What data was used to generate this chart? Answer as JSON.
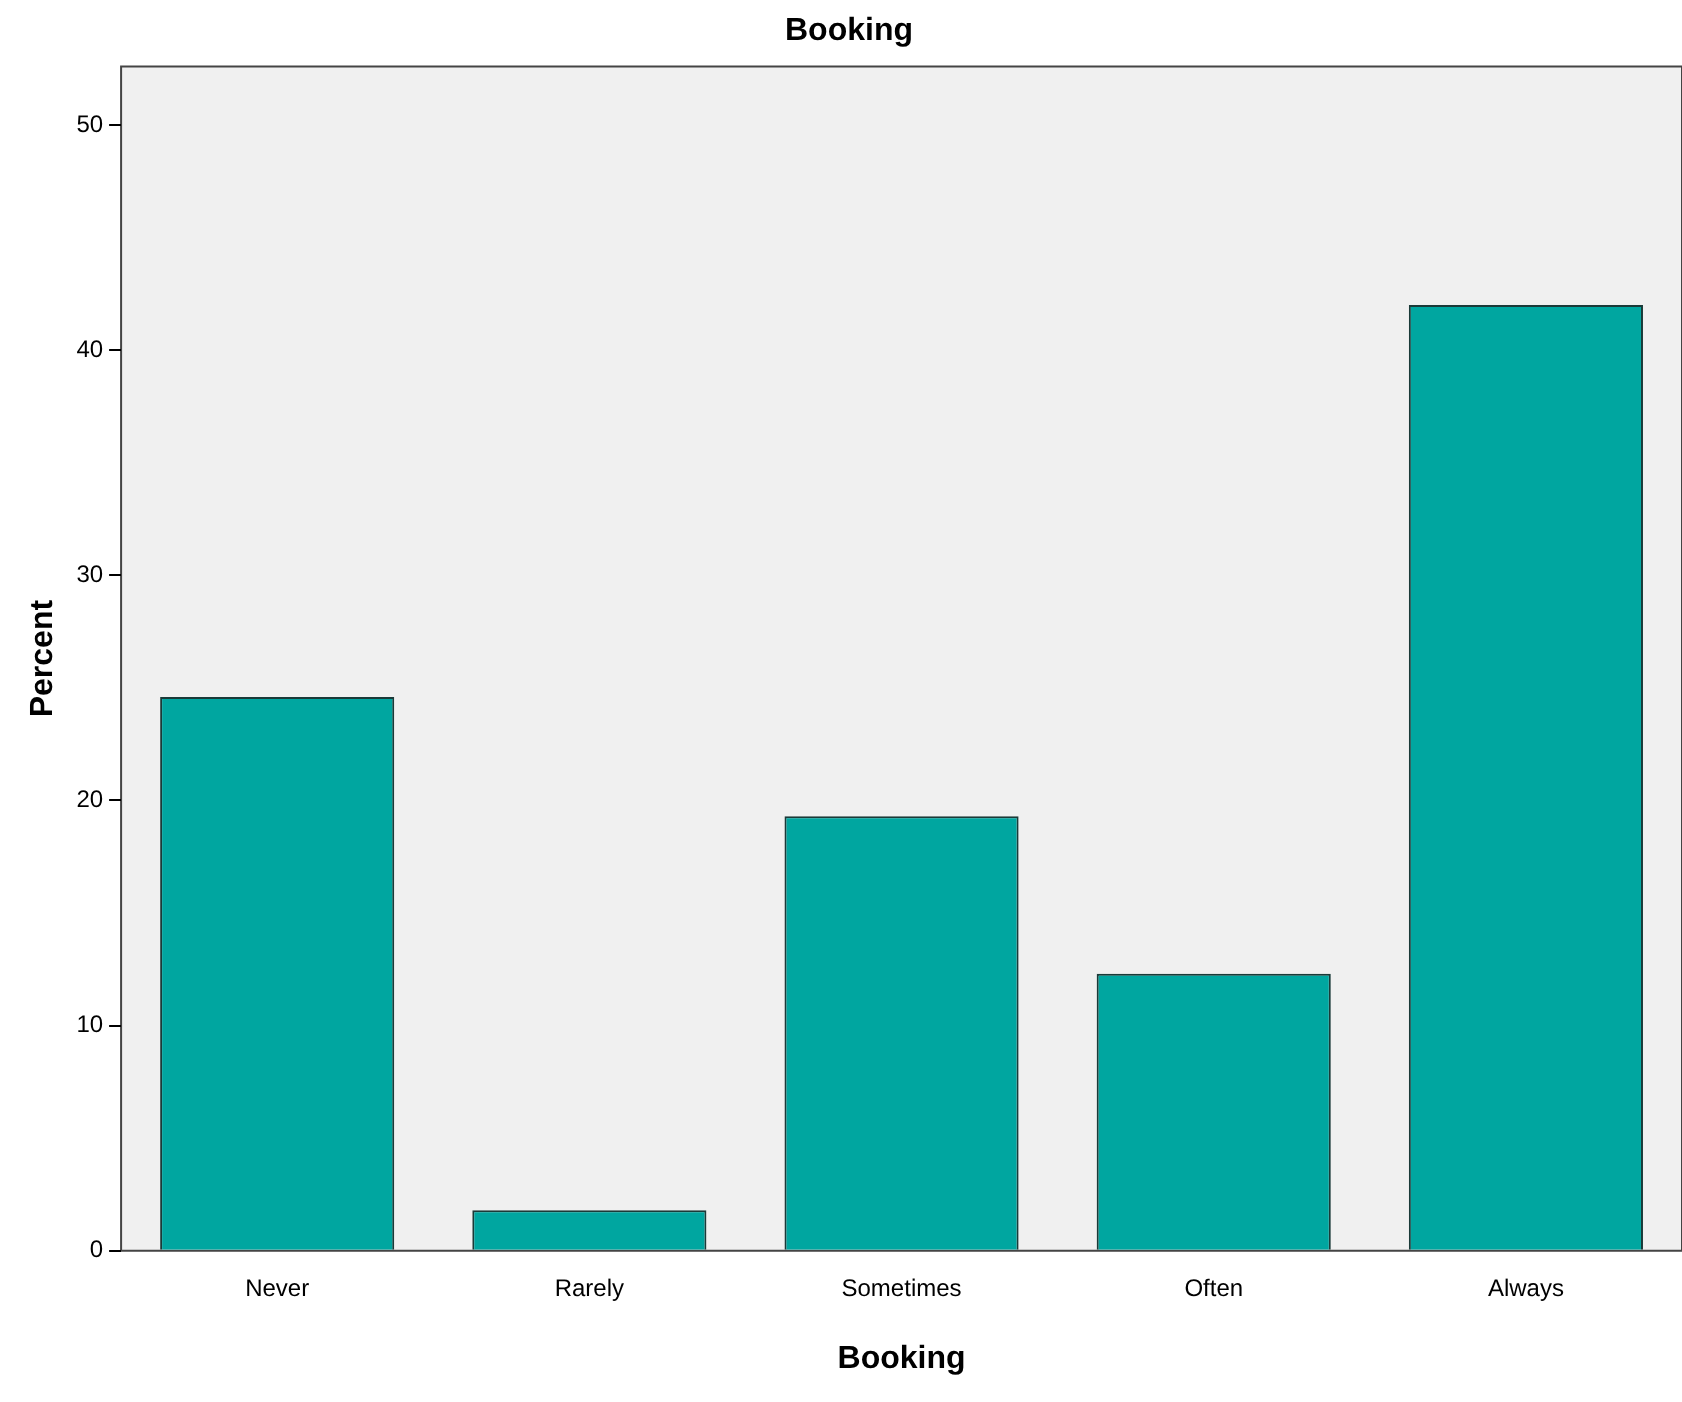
{
  "chart_data": {
    "type": "bar",
    "title": "Booking",
    "xlabel": "Booking",
    "ylabel": "Percent",
    "categories": [
      "Never",
      "Rarely",
      "Sometimes",
      "Often",
      "Always"
    ],
    "values": [
      24.6,
      1.8,
      19.3,
      12.3,
      42.0
    ],
    "color": "#00a6a0",
    "ylim": [
      0,
      52.6
    ],
    "yticks": [
      0,
      10,
      20,
      30,
      40,
      50
    ],
    "grid": false,
    "legend": false
  }
}
